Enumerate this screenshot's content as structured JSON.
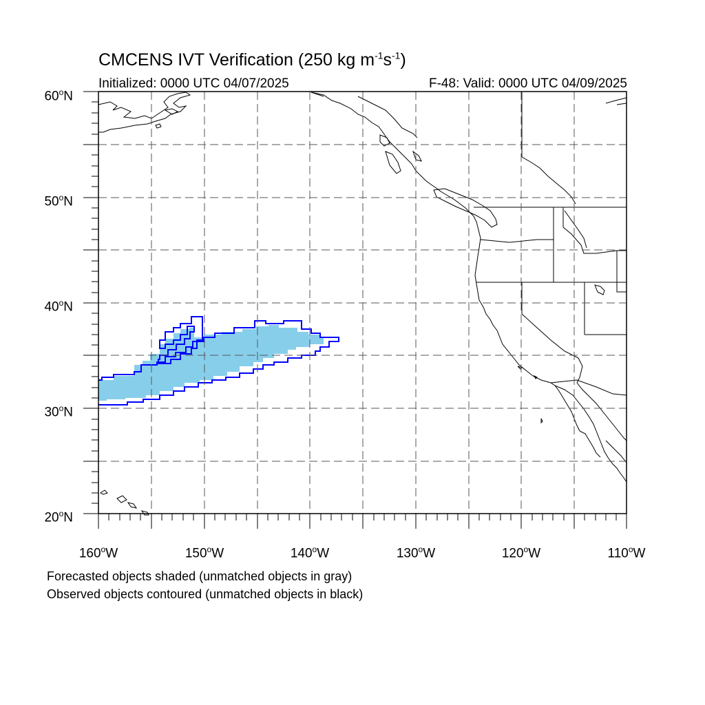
{
  "figure": {
    "title_main": "CMCENS IVT Verification (250 kg m",
    "title_sup1": "-1",
    "title_mid": "s",
    "title_sup2": "-1",
    "title_end": ")",
    "initialized": "Initialized: 0000 UTC 04/07/2025",
    "valid": "F-48: Valid: 0000 UTC 04/09/2025"
  },
  "axes": {
    "lat_labels": [
      {
        "num": "60",
        "hemi": "N"
      },
      {
        "num": "50",
        "hemi": "N"
      },
      {
        "num": "40",
        "hemi": "N"
      },
      {
        "num": "30",
        "hemi": "N"
      },
      {
        "num": "20",
        "hemi": "N"
      }
    ],
    "lon_labels": [
      {
        "num": "160",
        "hemi": "W"
      },
      {
        "num": "150",
        "hemi": "W"
      },
      {
        "num": "140",
        "hemi": "W"
      },
      {
        "num": "130",
        "hemi": "W"
      },
      {
        "num": "120",
        "hemi": "W"
      },
      {
        "num": "110",
        "hemi": "W"
      }
    ],
    "degree_symbol": "o",
    "lon_range": [
      -160,
      -110
    ],
    "lat_range": [
      20,
      60
    ],
    "grid": "dashed, every 5 degrees"
  },
  "legend_notes": {
    "line1": "Forecasted objects shaded (unmatched objects in gray)",
    "line2": "Observed objects contoured (unmatched objects in black)"
  },
  "colors": {
    "forecast_fill": "#87ceeb",
    "observed_contour": "#0000ff",
    "coastline": "#000000",
    "grid": "#555555"
  }
}
